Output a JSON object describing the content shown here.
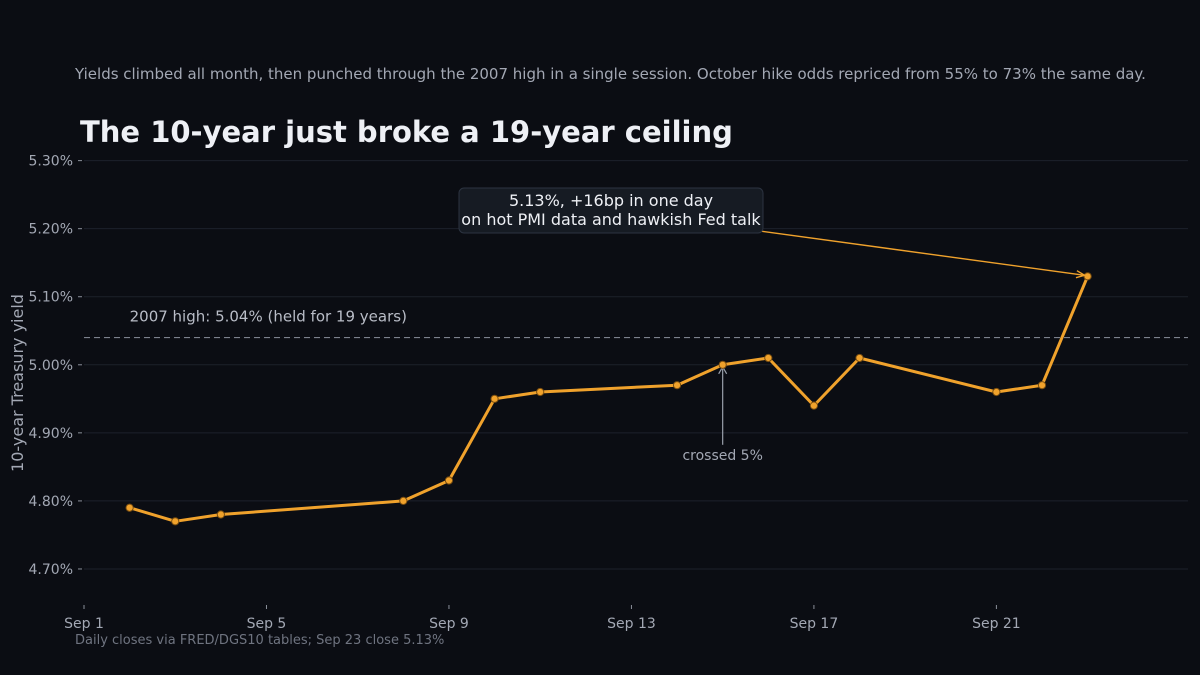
{
  "subtitle": "Yields climbed all month, then punched through the 2007 high in a single session. October hike odds repriced from 55% to 73% the same day.",
  "title": "The 10-year just broke a 19-year ceiling",
  "source": "Daily closes via FRED/DGS10 tables; Sep 23 close 5.13%",
  "colors": {
    "background": "#0b0d13",
    "line": "#f0a22c",
    "reference": "#7c818c",
    "annotation_box": "#161b23"
  },
  "chart_data": {
    "type": "line",
    "title": "The 10-year just broke a 19-year ceiling",
    "ylabel": "10-year Treasury yield",
    "xlabel": "",
    "xlim": [
      1,
      25.2
    ],
    "ylim": [
      4.65,
      5.32
    ],
    "grid": true,
    "x_ticks": [
      {
        "x": 1,
        "label": "Sep 1"
      },
      {
        "x": 5,
        "label": "Sep 5"
      },
      {
        "x": 9,
        "label": "Sep 9"
      },
      {
        "x": 13,
        "label": "Sep 13"
      },
      {
        "x": 17,
        "label": "Sep 17"
      },
      {
        "x": 21,
        "label": "Sep 21"
      }
    ],
    "y_ticks": [
      {
        "y": 4.7,
        "label": "4.70%"
      },
      {
        "y": 4.8,
        "label": "4.80%"
      },
      {
        "y": 4.9,
        "label": "4.90%"
      },
      {
        "y": 5.0,
        "label": "5.00%"
      },
      {
        "y": 5.1,
        "label": "5.10%"
      },
      {
        "y": 5.2,
        "label": "5.20%"
      },
      {
        "y": 5.3,
        "label": "5.30%"
      }
    ],
    "series": [
      {
        "x": [
          2,
          3,
          4,
          8,
          9,
          10,
          11,
          14,
          15,
          16,
          17,
          18,
          21,
          22,
          23
        ],
        "y": [
          4.79,
          4.77,
          4.78,
          4.8,
          4.83,
          4.95,
          4.96,
          4.97,
          5.0,
          5.01,
          4.94,
          5.01,
          4.96,
          4.97,
          5.13
        ]
      }
    ],
    "reference_line": {
      "y": 5.04,
      "label": "2007 high: 5.04% (held for 19 years)"
    },
    "annotations": [
      {
        "text": "crossed 5%",
        "x": 15,
        "y": 5.0
      },
      {
        "lines": [
          "5.13%, +16bp in one day",
          "on hot PMI data and hawkish Fed talk"
        ],
        "x": 23,
        "y": 5.13
      }
    ]
  }
}
